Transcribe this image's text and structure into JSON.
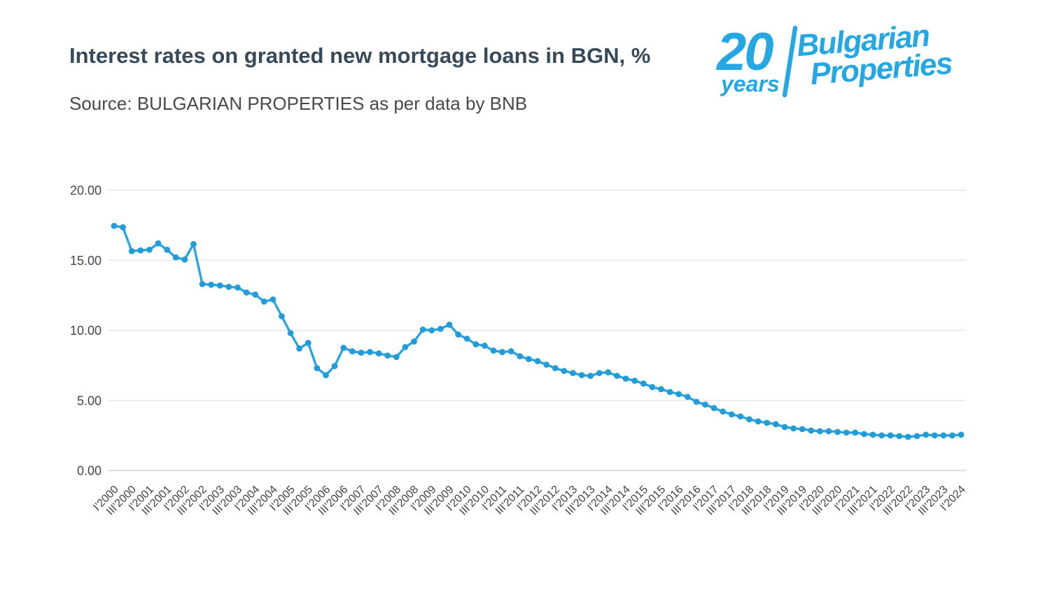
{
  "header": {
    "title": "Interest rates on granted new mortgage loans in BGN, %",
    "source": "Source: BULGARIAN PROPERTIES as per data by BNB"
  },
  "logo": {
    "number": "20",
    "years": "years",
    "brand_line1": "Bulgarian",
    "brand_line2": "Properties",
    "color": "#24A7E3"
  },
  "chart_data": {
    "type": "line",
    "title": "Interest rates on granted new mortgage loans in BGN, %",
    "xlabel": "",
    "ylabel": "",
    "ylim": [
      0,
      20
    ],
    "y_ticks": [
      "0.00",
      "5.00",
      "10.00",
      "15.00",
      "20.00"
    ],
    "grid": true,
    "legend": "none",
    "x_tick_interval": 2,
    "line_color": "#2BA4DF",
    "point_color": "#229CD8",
    "x": [
      "I'2000",
      "II'2000",
      "III'2000",
      "IV'2000",
      "I'2001",
      "II'2001",
      "III'2001",
      "IV'2001",
      "I'2002",
      "II'2002",
      "III'2002",
      "IV'2002",
      "I'2003",
      "II'2003",
      "III'2003",
      "IV'2003",
      "I'2004",
      "II'2004",
      "III'2004",
      "IV'2004",
      "I'2005",
      "II'2005",
      "III'2005",
      "IV'2005",
      "I'2006",
      "II'2006",
      "III'2006",
      "IV'2006",
      "I'2007",
      "II'2007",
      "III'2007",
      "IV'2007",
      "I'2008",
      "II'2008",
      "III'2008",
      "IV'2008",
      "I'2009",
      "II'2009",
      "III'2009",
      "IV'2009",
      "I'2010",
      "II'2010",
      "III'2010",
      "IV'2010",
      "I'2011",
      "II'2011",
      "III'2011",
      "IV'2011",
      "I'2012",
      "II'2012",
      "III'2012",
      "IV'2012",
      "I'2013",
      "II'2013",
      "III'2013",
      "IV'2013",
      "I'2014",
      "II'2014",
      "III'2014",
      "IV'2014",
      "I'2015",
      "II'2015",
      "III'2015",
      "IV'2015",
      "I'2016",
      "II'2016",
      "III'2016",
      "IV'2016",
      "I'2017",
      "II'2017",
      "III'2017",
      "IV'2017",
      "I'2018",
      "II'2018",
      "III'2018",
      "IV'2018",
      "I'2019",
      "II'2019",
      "III'2019",
      "IV'2019",
      "I'2020",
      "II'2020",
      "III'2020",
      "IV'2020",
      "I'2021",
      "II'2021",
      "III'2021",
      "IV'2021",
      "I'2022",
      "II'2022",
      "III'2022",
      "IV'2022",
      "I'2023",
      "II'2023",
      "III'2023",
      "IV'2023",
      "I'2024"
    ],
    "values": [
      17.45,
      17.35,
      15.65,
      15.7,
      15.75,
      16.2,
      15.75,
      15.2,
      15.05,
      16.15,
      13.3,
      13.25,
      13.2,
      13.1,
      13.05,
      12.7,
      12.55,
      12.05,
      12.2,
      11.0,
      9.8,
      8.7,
      9.1,
      7.3,
      6.8,
      7.45,
      8.75,
      8.5,
      8.4,
      8.45,
      8.35,
      8.2,
      8.1,
      8.8,
      9.2,
      10.05,
      10.0,
      10.1,
      10.4,
      9.7,
      9.4,
      9.0,
      8.9,
      8.55,
      8.45,
      8.5,
      8.15,
      7.95,
      7.8,
      7.55,
      7.3,
      7.1,
      6.95,
      6.8,
      6.75,
      6.95,
      7.0,
      6.75,
      6.55,
      6.4,
      6.2,
      5.95,
      5.8,
      5.6,
      5.45,
      5.25,
      4.9,
      4.7,
      4.45,
      4.2,
      4.0,
      3.85,
      3.65,
      3.5,
      3.4,
      3.3,
      3.1,
      3.0,
      2.95,
      2.85,
      2.8,
      2.8,
      2.75,
      2.7,
      2.7,
      2.6,
      2.55,
      2.5,
      2.5,
      2.45,
      2.4,
      2.45,
      2.55,
      2.5,
      2.5,
      2.5,
      2.55
    ]
  }
}
